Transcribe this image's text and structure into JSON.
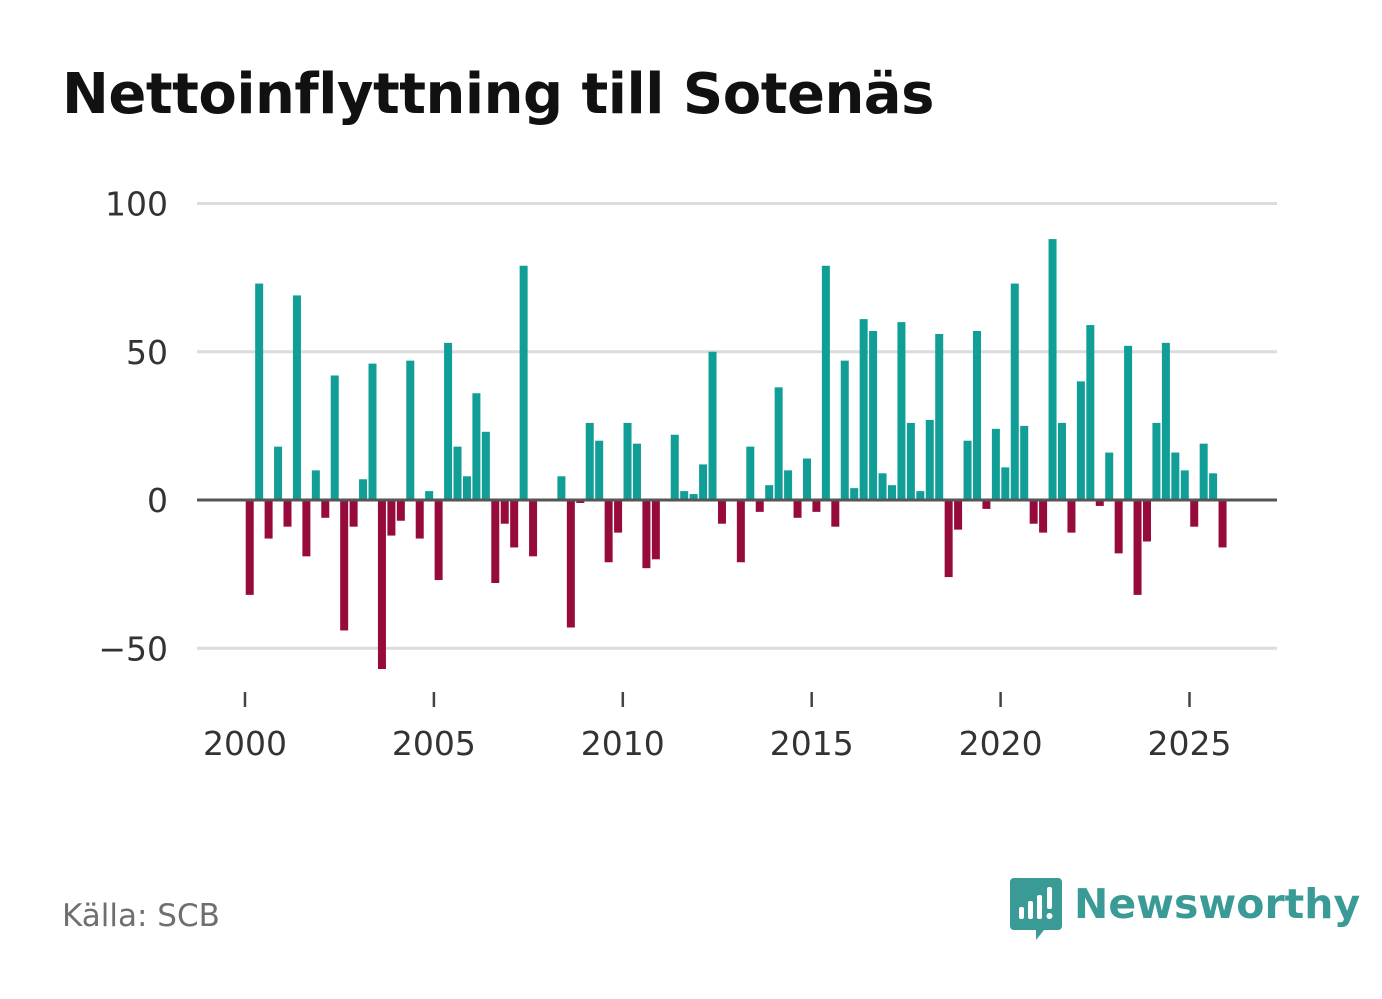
{
  "title": "Nettoinflyttning till Sotenäs",
  "source": "Källa: SCB",
  "brand": {
    "name": "Newsworthy",
    "icon": "newsworthy-logo-icon"
  },
  "colors": {
    "positive": "#109e97",
    "negative": "#970a3c",
    "gridline": "#dcdcdc",
    "zero_line": "#555555",
    "brand": "#3a9b96"
  },
  "chart_data": {
    "type": "bar",
    "title": "Nettoinflyttning till Sotenäs",
    "xlabel": "",
    "ylabel": "",
    "ylim": [
      -62,
      106
    ],
    "xlim": [
      1999.4,
      2027.3
    ],
    "yticks": [
      {
        "value": 100,
        "label": "100"
      },
      {
        "value": 50,
        "label": "50"
      },
      {
        "value": 0,
        "label": "0"
      },
      {
        "value": -50,
        "label": "−50"
      }
    ],
    "xticks": [
      {
        "value": 2000,
        "label": "2000"
      },
      {
        "value": 2005,
        "label": "2005"
      },
      {
        "value": 2010,
        "label": "2010"
      },
      {
        "value": 2015,
        "label": "2015"
      },
      {
        "value": 2020,
        "label": "2020"
      },
      {
        "value": 2025,
        "label": "2025"
      }
    ],
    "period": "quarterly",
    "start": {
      "year": 2000,
      "quarter": 1
    },
    "grid": true,
    "legend": "none",
    "values": [
      -32,
      73,
      -13,
      18,
      -9,
      69,
      -19,
      10,
      -6,
      42,
      -44,
      -9,
      7,
      46,
      -57,
      -12,
      -7,
      47,
      -13,
      3,
      -27,
      53,
      18,
      8,
      36,
      23,
      -28,
      -8,
      -16,
      79,
      -19,
      0,
      0,
      8,
      -43,
      -1,
      26,
      20,
      -21,
      -11,
      26,
      19,
      -23,
      -20,
      0,
      22,
      3,
      2,
      12,
      50,
      -8,
      0,
      -21,
      18,
      -4,
      5,
      38,
      10,
      -6,
      14,
      -4,
      79,
      -9,
      47,
      4,
      61,
      57,
      9,
      5,
      60,
      26,
      3,
      27,
      56,
      -26,
      -10,
      20,
      57,
      -3,
      24,
      11,
      73,
      25,
      -8,
      -11,
      88,
      26,
      -11,
      40,
      59,
      -2,
      16,
      -18,
      52,
      -32,
      -14,
      26,
      53,
      16,
      10,
      -9,
      19,
      9,
      -16
    ]
  }
}
